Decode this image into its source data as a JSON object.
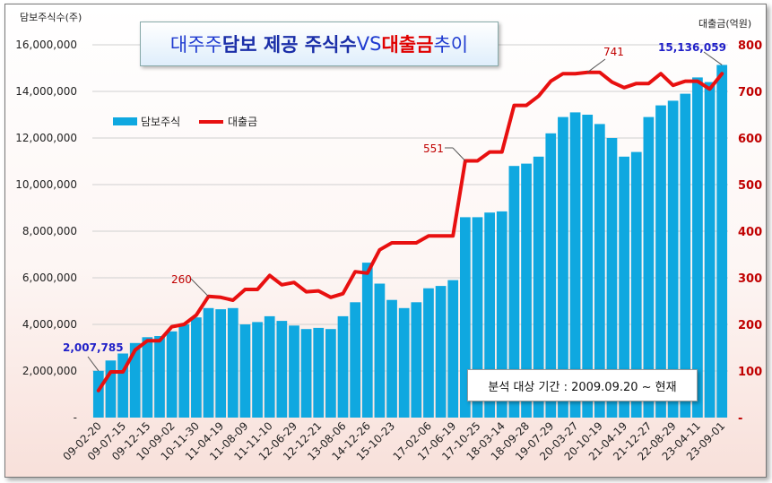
{
  "chart_data": {
    "type": "bar+line",
    "title": {
      "part1": "대주주 ",
      "part2": "담보 제공 주식수",
      "part3": " VS ",
      "part4": "대출금",
      "part5": " 추이"
    },
    "y_left_label": "담보주식수(주)",
    "y_right_label": "대출금(억원)",
    "y_left_range": [
      0,
      16000000
    ],
    "y_left_ticks": [
      "-",
      "2,000,000",
      "4,000,000",
      "6,000,000",
      "8,000,000",
      "10,000,000",
      "12,000,000",
      "14,000,000",
      "16,000,000"
    ],
    "y_right_range": [
      0,
      800
    ],
    "y_right_ticks": [
      "-",
      "100",
      "200",
      "300",
      "400",
      "500",
      "600",
      "700",
      "800"
    ],
    "x_tick_labels": [
      "09-02-20",
      "09-07-15",
      "09-12-15",
      "10-09-02",
      "10-11-30",
      "11-04-19",
      "11-08-09",
      "11-11-10",
      "12-06-29",
      "12-12-21",
      "13-08-06",
      "14-12-26",
      "15-10-23",
      "17-02-06",
      "17-06-19",
      "17-10-25",
      "18-03-14",
      "18-09-28",
      "19-07-29",
      "20-03-27",
      "20-10-19",
      "21-04-19",
      "21-12-27",
      "22-08-29",
      "23-04-11",
      "23-09-01"
    ],
    "legend": [
      "담보주식",
      "대출금"
    ],
    "legend_position": "top-left",
    "bar_color": "#0fa8e0",
    "line_color": "#e81010",
    "series": [
      {
        "name": "담보주식",
        "type": "bar",
        "values": [
          2007785,
          2450000,
          2750000,
          3200000,
          3450000,
          3500000,
          3700000,
          4000000,
          4300000,
          4700000,
          4650000,
          4700000,
          4000000,
          4100000,
          4350000,
          4150000,
          3950000,
          3800000,
          3850000,
          3800000,
          4350000,
          4950000,
          6650000,
          5750000,
          5050000,
          4700000,
          4950000,
          5550000,
          5650000,
          5900000,
          8600000,
          8600000,
          8800000,
          8850000,
          10800000,
          10900000,
          11200000,
          12200000,
          12900000,
          13100000,
          13000000,
          12600000,
          12000000,
          11200000,
          11400000,
          12900000,
          13400000,
          13600000,
          13900000,
          14600000,
          14400000,
          15136059
        ]
      },
      {
        "name": "대출금",
        "type": "line",
        "values": [
          58,
          98,
          98,
          145,
          165,
          165,
          195,
          200,
          220,
          260,
          258,
          252,
          275,
          275,
          305,
          285,
          290,
          270,
          272,
          258,
          266,
          313,
          310,
          360,
          375,
          375,
          375,
          390,
          390,
          390,
          551,
          551,
          570,
          570,
          670,
          670,
          690,
          722,
          738,
          738,
          741,
          741,
          720,
          708,
          717,
          717,
          738,
          713,
          722,
          722,
          705,
          738
        ]
      }
    ],
    "annotations": {
      "first_stock": "2,007,785",
      "last_stock": "15,136,059",
      "loan_260": "260",
      "loan_551": "551",
      "loan_741": "741"
    },
    "period_note": "분석 대상 기간 : 2009.09.20 ~ 현재",
    "grid": true
  }
}
